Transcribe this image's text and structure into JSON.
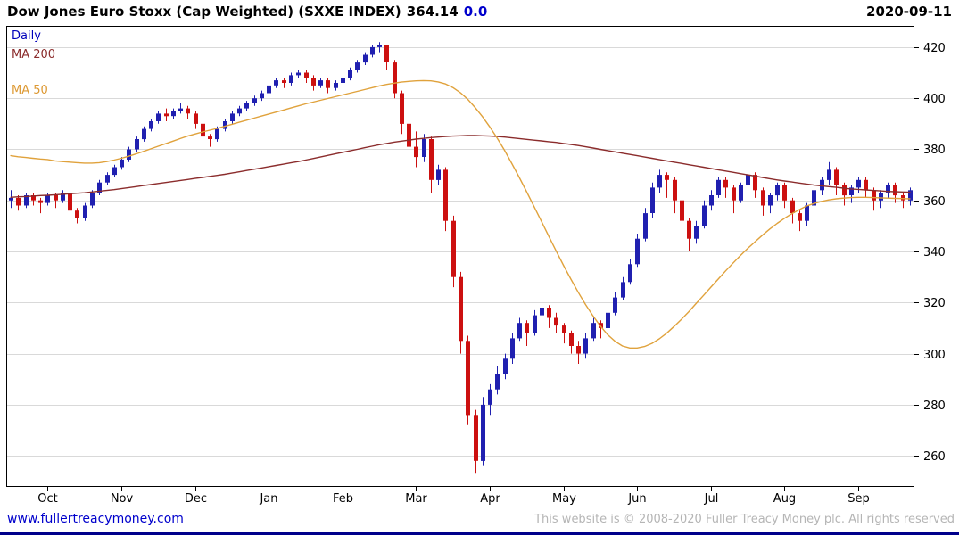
{
  "header": {
    "title": "Dow Jones Euro Stoxx (Cap Weighted)  (SXXE INDEX)",
    "last_price": "364.14",
    "change": "0.0",
    "date": "2020-09-11"
  },
  "legend": {
    "timeframe": "Daily",
    "ma200_label": "MA 200",
    "ma50_label": "MA 50"
  },
  "footer": {
    "link": "www.fullertreacymoney.com",
    "copyright": "This website is © 2008-2020 Fuller Treacy Money plc. All rights reserved"
  },
  "colors": {
    "up": "#2020b0",
    "down": "#cc1010",
    "ma200": "#8b2c2c",
    "ma50": "#e0a23c",
    "grid": "#d9d9d9",
    "axis": "#000000",
    "change_blue": "#0000cc"
  },
  "chart_data": {
    "type": "candlestick",
    "title": "Dow Jones Euro Stoxx (Cap Weighted) (SXXE INDEX)",
    "timeframe": "Daily",
    "last_close": 364.14,
    "change": 0.0,
    "legend_position": "top-left",
    "grid": "horizontal",
    "x_labels": [
      "Oct",
      "Nov",
      "Dec",
      "Jan",
      "Feb",
      "Mar",
      "Apr",
      "May",
      "Jun",
      "Jul",
      "Aug",
      "Sep"
    ],
    "month_start_indices": [
      5,
      15,
      25,
      35,
      45,
      55,
      65,
      75,
      85,
      95,
      105,
      115
    ],
    "ylim": [
      248,
      428
    ],
    "yticks": [
      260,
      280,
      300,
      320,
      340,
      360,
      380,
      400,
      420
    ],
    "candles": [
      [
        360,
        364,
        357,
        361
      ],
      [
        361,
        362,
        356,
        358
      ],
      [
        358,
        363,
        357,
        362
      ],
      [
        362,
        363,
        358,
        360
      ],
      [
        360,
        361,
        355,
        359
      ],
      [
        359,
        363,
        358,
        362
      ],
      [
        362,
        363,
        357,
        360
      ],
      [
        360,
        364,
        359,
        363
      ],
      [
        363,
        364,
        354,
        356
      ],
      [
        356,
        357,
        351,
        353
      ],
      [
        353,
        359,
        352,
        358
      ],
      [
        358,
        364,
        357,
        363
      ],
      [
        363,
        368,
        362,
        367
      ],
      [
        367,
        371,
        366,
        370
      ],
      [
        370,
        374,
        369,
        373
      ],
      [
        373,
        377,
        372,
        376
      ],
      [
        376,
        381,
        375,
        380
      ],
      [
        380,
        385,
        379,
        384
      ],
      [
        384,
        389,
        383,
        388
      ],
      [
        388,
        392,
        387,
        391
      ],
      [
        391,
        395,
        390,
        394
      ],
      [
        394,
        396,
        391,
        393
      ],
      [
        393,
        396,
        392,
        395
      ],
      [
        395,
        398,
        394,
        396
      ],
      [
        396,
        397,
        392,
        394
      ],
      [
        394,
        395,
        388,
        390
      ],
      [
        390,
        391,
        383,
        385
      ],
      [
        385,
        386,
        381,
        384
      ],
      [
        384,
        389,
        383,
        388
      ],
      [
        388,
        392,
        387,
        391
      ],
      [
        391,
        395,
        390,
        394
      ],
      [
        394,
        397,
        393,
        396
      ],
      [
        396,
        399,
        395,
        398
      ],
      [
        398,
        401,
        397,
        400
      ],
      [
        400,
        403,
        399,
        402
      ],
      [
        402,
        406,
        401,
        405
      ],
      [
        405,
        408,
        404,
        407
      ],
      [
        407,
        408,
        404,
        406
      ],
      [
        406,
        410,
        405,
        409
      ],
      [
        409,
        411,
        408,
        410
      ],
      [
        410,
        411,
        406,
        408
      ],
      [
        408,
        409,
        403,
        405
      ],
      [
        405,
        408,
        404,
        407
      ],
      [
        407,
        408,
        402,
        404
      ],
      [
        404,
        407,
        403,
        406
      ],
      [
        406,
        409,
        405,
        408
      ],
      [
        408,
        412,
        407,
        411
      ],
      [
        411,
        415,
        410,
        414
      ],
      [
        414,
        418,
        413,
        417
      ],
      [
        417,
        421,
        416,
        420
      ],
      [
        420,
        422,
        418,
        421
      ],
      [
        421,
        421,
        411,
        414
      ],
      [
        414,
        415,
        400,
        402
      ],
      [
        402,
        403,
        386,
        390
      ],
      [
        390,
        392,
        377,
        381
      ],
      [
        381,
        387,
        373,
        377
      ],
      [
        377,
        386,
        375,
        384
      ],
      [
        384,
        385,
        363,
        368
      ],
      [
        368,
        374,
        366,
        372
      ],
      [
        372,
        373,
        348,
        352
      ],
      [
        352,
        354,
        326,
        330
      ],
      [
        330,
        332,
        300,
        305
      ],
      [
        305,
        307,
        272,
        276
      ],
      [
        276,
        278,
        253,
        258
      ],
      [
        258,
        283,
        256,
        280
      ],
      [
        280,
        288,
        276,
        286
      ],
      [
        286,
        295,
        284,
        292
      ],
      [
        292,
        300,
        290,
        298
      ],
      [
        298,
        308,
        296,
        306
      ],
      [
        306,
        314,
        305,
        312
      ],
      [
        312,
        313,
        303,
        308
      ],
      [
        308,
        317,
        307,
        315
      ],
      [
        315,
        320,
        313,
        318
      ],
      [
        318,
        319,
        310,
        314
      ],
      [
        314,
        316,
        308,
        311
      ],
      [
        311,
        312,
        304,
        308
      ],
      [
        308,
        309,
        300,
        303
      ],
      [
        303,
        305,
        296,
        300
      ],
      [
        300,
        308,
        298,
        306
      ],
      [
        306,
        314,
        305,
        312
      ],
      [
        312,
        313,
        306,
        310
      ],
      [
        310,
        318,
        309,
        316
      ],
      [
        316,
        324,
        315,
        322
      ],
      [
        322,
        330,
        321,
        328
      ],
      [
        328,
        337,
        327,
        335
      ],
      [
        335,
        347,
        334,
        345
      ],
      [
        345,
        357,
        344,
        355
      ],
      [
        355,
        367,
        353,
        365
      ],
      [
        365,
        372,
        363,
        370
      ],
      [
        370,
        371,
        361,
        368
      ],
      [
        368,
        369,
        355,
        360
      ],
      [
        360,
        361,
        347,
        352
      ],
      [
        352,
        353,
        340,
        345
      ],
      [
        345,
        352,
        343,
        350
      ],
      [
        350,
        360,
        349,
        358
      ],
      [
        358,
        364,
        356,
        362
      ],
      [
        362,
        369,
        361,
        368
      ],
      [
        368,
        369,
        361,
        365
      ],
      [
        365,
        366,
        355,
        360
      ],
      [
        360,
        367,
        359,
        366
      ],
      [
        366,
        371,
        364,
        370
      ],
      [
        370,
        371,
        361,
        364
      ],
      [
        364,
        365,
        354,
        358
      ],
      [
        358,
        363,
        355,
        362
      ],
      [
        362,
        367,
        360,
        366
      ],
      [
        366,
        367,
        357,
        360
      ],
      [
        360,
        361,
        351,
        355
      ],
      [
        355,
        356,
        348,
        352
      ],
      [
        352,
        359,
        350,
        358
      ],
      [
        358,
        365,
        356,
        364
      ],
      [
        364,
        369,
        362,
        368
      ],
      [
        368,
        375,
        366,
        372
      ],
      [
        372,
        373,
        362,
        366
      ],
      [
        366,
        367,
        358,
        362
      ],
      [
        362,
        366,
        359,
        365
      ],
      [
        365,
        369,
        363,
        368
      ],
      [
        368,
        369,
        361,
        364
      ],
      [
        364,
        365,
        356,
        360
      ],
      [
        360,
        364,
        357,
        363
      ],
      [
        363,
        367,
        361,
        366
      ],
      [
        366,
        367,
        359,
        362
      ],
      [
        362,
        363,
        357,
        360
      ],
      [
        360,
        365,
        358,
        364
      ]
    ],
    "ma200": [
      361.2,
      361.4,
      361.5,
      361.7,
      361.9,
      362.0,
      362.2,
      362.4,
      362.6,
      362.8,
      363.0,
      363.3,
      363.6,
      363.9,
      364.2,
      364.6,
      365.0,
      365.4,
      365.8,
      366.2,
      366.6,
      367.0,
      367.4,
      367.8,
      368.2,
      368.6,
      369.0,
      369.4,
      369.8,
      370.2,
      370.7,
      371.2,
      371.7,
      372.2,
      372.7,
      373.2,
      373.7,
      374.2,
      374.7,
      375.2,
      375.8,
      376.4,
      377.0,
      377.6,
      378.2,
      378.8,
      379.4,
      380.0,
      380.6,
      381.2,
      381.8,
      382.3,
      382.8,
      383.2,
      383.6,
      384.0,
      384.3,
      384.6,
      384.8,
      385.0,
      385.2,
      385.3,
      385.4,
      385.4,
      385.3,
      385.2,
      385.0,
      384.8,
      384.5,
      384.2,
      383.9,
      383.6,
      383.3,
      383.0,
      382.7,
      382.3,
      381.9,
      381.5,
      381.0,
      380.5,
      380.0,
      379.5,
      379.0,
      378.5,
      378.0,
      377.5,
      377.0,
      376.5,
      376.0,
      375.5,
      375.0,
      374.5,
      374.0,
      373.5,
      373.0,
      372.5,
      372.0,
      371.5,
      371.0,
      370.5,
      370.0,
      369.5,
      369.0,
      368.5,
      368.0,
      367.6,
      367.2,
      366.8,
      366.4,
      366.0,
      365.7,
      365.4,
      365.1,
      364.8,
      364.5,
      364.3,
      364.1,
      363.9,
      363.7,
      363.5,
      363.4,
      363.3,
      363.2
    ],
    "ma50": [
      377.5,
      377.1,
      376.8,
      376.5,
      376.2,
      376.0,
      375.5,
      375.2,
      375.0,
      374.8,
      374.6,
      374.6,
      374.8,
      375.2,
      375.8,
      376.5,
      377.3,
      378.2,
      379.2,
      380.2,
      381.2,
      382.2,
      383.2,
      384.2,
      385.2,
      386.0,
      386.8,
      387.5,
      388.2,
      389.0,
      389.8,
      390.6,
      391.4,
      392.2,
      393.0,
      393.8,
      394.6,
      395.4,
      396.2,
      397.0,
      397.8,
      398.5,
      399.2,
      399.9,
      400.6,
      401.3,
      402.0,
      402.7,
      403.4,
      404.1,
      404.8,
      405.4,
      405.9,
      406.3,
      406.6,
      406.8,
      406.9,
      406.8,
      406.4,
      405.6,
      404.2,
      402.2,
      399.6,
      396.4,
      392.8,
      388.8,
      384.4,
      379.6,
      374.4,
      369.0,
      363.4,
      357.6,
      351.8,
      346.0,
      340.2,
      334.6,
      329.2,
      324.0,
      319.2,
      314.8,
      310.8,
      307.4,
      304.8,
      303.0,
      302.2,
      302.2,
      302.8,
      304.0,
      305.8,
      308.0,
      310.6,
      313.4,
      316.4,
      319.6,
      322.8,
      326.0,
      329.2,
      332.4,
      335.4,
      338.4,
      341.2,
      343.8,
      346.4,
      348.8,
      351.0,
      353.0,
      354.8,
      356.4,
      357.8,
      358.8,
      359.6,
      360.2,
      360.6,
      360.9,
      361.1,
      361.2,
      361.2,
      361.1,
      361.0,
      360.9,
      360.8,
      360.7,
      360.6
    ]
  }
}
